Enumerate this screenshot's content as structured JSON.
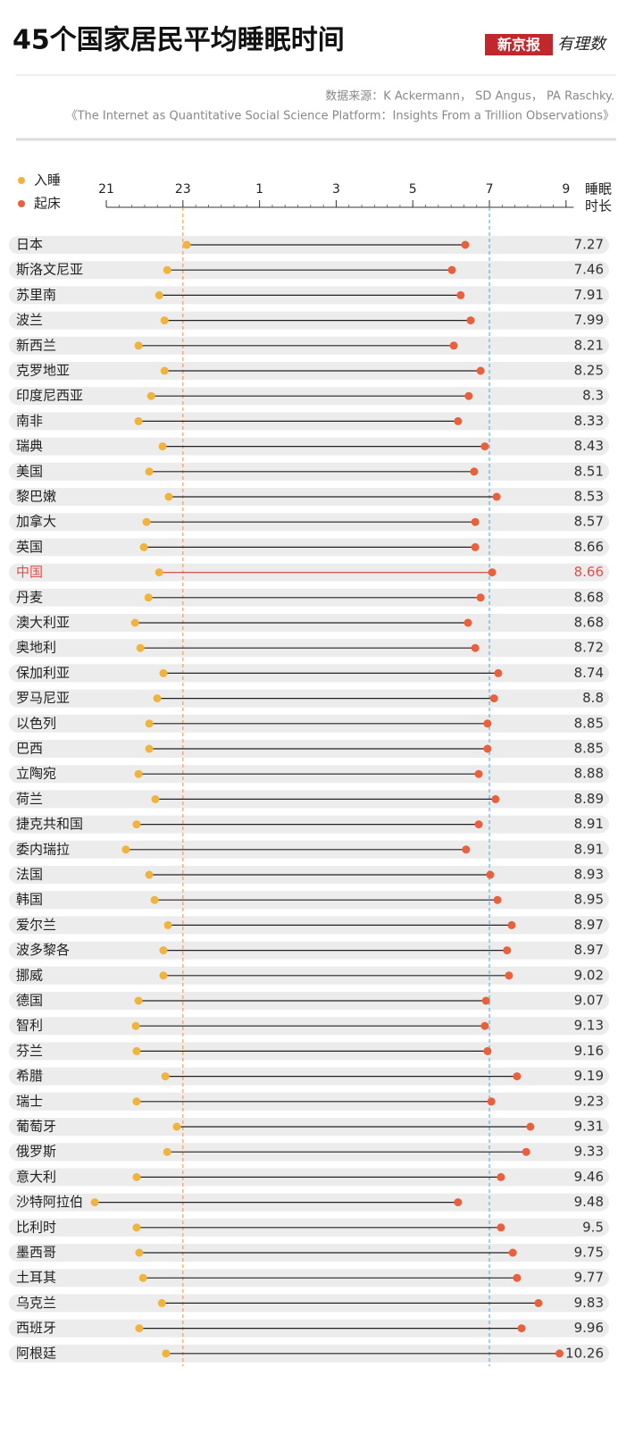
{
  "brand": {
    "name": "新京报",
    "column": "有理数"
  },
  "chart_data": {
    "type": "dumbbell",
    "title": "45个国家居民平均睡眠时间",
    "source": [
      "数据来源：K Ackermann， SD Angus， PA Raschky.",
      "《The Internet as Quantitative Social Science Platform：Insights From a Trillion Observations》"
    ],
    "duration_label": [
      "睡眠",
      "时长"
    ],
    "categories": [
      "日本",
      "斯洛文尼亚",
      "苏里南",
      "波兰",
      "新西兰",
      "克罗地亚",
      "印度尼西亚",
      "南非",
      "瑞典",
      "美国",
      "黎巴嫩",
      "加拿大",
      "英国",
      "中国",
      "丹麦",
      "澳大利亚",
      "奥地利",
      "保加利亚",
      "罗马尼亚",
      "以色列",
      "巴西",
      "立陶宛",
      "荷兰",
      "捷克共和国",
      "委内瑞拉",
      "法国",
      "韩国",
      "爱尔兰",
      "波多黎各",
      "挪威",
      "德国",
      "智利",
      "芬兰",
      "希腊",
      "瑞士",
      "葡萄牙",
      "俄罗斯",
      "意大利",
      "沙特阿拉伯",
      "比利时",
      "墨西哥",
      "土耳其",
      "乌克兰",
      "西班牙",
      "阿根廷"
    ],
    "series": [
      {
        "name": "入睡",
        "color": "#f0b43c",
        "values": [
          23.1,
          22.59,
          22.38,
          22.52,
          21.84,
          22.52,
          22.17,
          21.84,
          22.47,
          22.12,
          22.63,
          22.05,
          21.98,
          22.38,
          22.1,
          21.75,
          21.89,
          22.49,
          22.33,
          22.12,
          22.12,
          21.84,
          22.28,
          21.79,
          21.51,
          22.12,
          22.26,
          22.61,
          22.49,
          22.49,
          21.84,
          21.77,
          21.79,
          22.54,
          21.79,
          22.84,
          22.59,
          21.79,
          20.7,
          21.79,
          21.86,
          21.96,
          22.45,
          21.86,
          22.56
        ]
      },
      {
        "name": "起床",
        "color": "#e8603c",
        "values": [
          30.37,
          30.02,
          30.25,
          30.51,
          30.07,
          30.77,
          30.46,
          30.18,
          30.88,
          30.6,
          31.19,
          30.63,
          30.63,
          31.07,
          30.77,
          30.44,
          30.63,
          31.23,
          31.12,
          30.95,
          30.95,
          30.72,
          31.16,
          30.72,
          30.39,
          31.02,
          31.21,
          31.58,
          31.46,
          31.51,
          30.91,
          30.88,
          30.95,
          31.72,
          31.05,
          32.07,
          31.96,
          31.3,
          30.18,
          31.3,
          31.61,
          31.72,
          32.28,
          31.84,
          32.83
        ]
      }
    ],
    "durations": [
      7.27,
      7.46,
      7.91,
      7.99,
      8.21,
      8.25,
      8.3,
      8.33,
      8.43,
      8.51,
      8.53,
      8.57,
      8.66,
      8.66,
      8.68,
      8.68,
      8.72,
      8.74,
      8.8,
      8.85,
      8.85,
      8.88,
      8.89,
      8.91,
      8.91,
      8.93,
      8.95,
      8.97,
      8.97,
      9.02,
      9.07,
      9.13,
      9.16,
      9.19,
      9.23,
      9.31,
      9.33,
      9.46,
      9.48,
      9.5,
      9.75,
      9.77,
      9.83,
      9.96,
      10.26
    ],
    "highlight_index": 13,
    "highlight_color": "#d9534f",
    "xlim": [
      20.4,
      33.2
    ],
    "xticks": [
      21,
      23,
      {
        "value": 25,
        "label": "1"
      },
      {
        "value": 27,
        "label": "3"
      },
      {
        "value": 29,
        "label": "5"
      },
      {
        "value": 31,
        "label": "7"
      },
      {
        "value": 33,
        "label": "9"
      }
    ],
    "ref_lines": [
      {
        "value": 23,
        "color": "#e8903c"
      },
      {
        "value": 31,
        "color": "#4aa3df"
      }
    ]
  }
}
